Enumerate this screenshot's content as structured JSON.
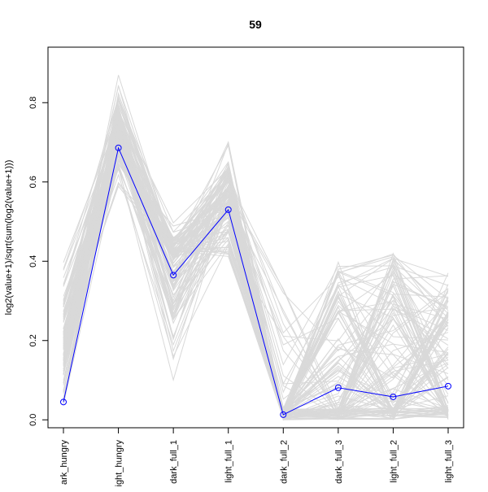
{
  "chart_data": {
    "type": "line",
    "title": "59",
    "xlabel": "",
    "ylabel": "log2(value+1)/sqrt(sum(log2(value+1)))",
    "categories": [
      "dark_hungry",
      "light_hungry",
      "dark_full_1",
      "light_full_1",
      "dark_full_2",
      "dark_full_3",
      "light_full_2",
      "light_full_3"
    ],
    "category_labels_visible": [
      "ark_hungry",
      "ight_hungry",
      "dark_full_1",
      "light_full_1",
      "dark_full_2",
      "dark_full_3",
      "light_full_2",
      "light_full_3"
    ],
    "ylim": [
      -0.02,
      0.94
    ],
    "yticks": [
      0.0,
      0.2,
      0.4,
      0.6,
      0.8
    ],
    "ytick_labels": [
      "0.0",
      "0.2",
      "0.4",
      "0.6",
      "0.8"
    ],
    "grid": false,
    "legend": "none",
    "highlight_series": {
      "values": [
        0.045,
        0.686,
        0.365,
        0.53,
        0.013,
        0.081,
        0.058,
        0.085
      ],
      "color": "#0000ff",
      "marker": "open-circle"
    },
    "background_series": {
      "color": "#d9d9d9",
      "count": 120,
      "value_ranges": [
        [
          0.0,
          0.43
        ],
        [
          0.55,
          0.9
        ],
        [
          0.05,
          0.52
        ],
        [
          0.37,
          0.75
        ],
        [
          0.0,
          0.34
        ],
        [
          0.0,
          0.4
        ],
        [
          0.0,
          0.42
        ],
        [
          0.0,
          0.38
        ]
      ],
      "typical_values": [
        0.2,
        0.72,
        0.4,
        0.56,
        0.01,
        0.15,
        0.12,
        0.18
      ]
    }
  }
}
